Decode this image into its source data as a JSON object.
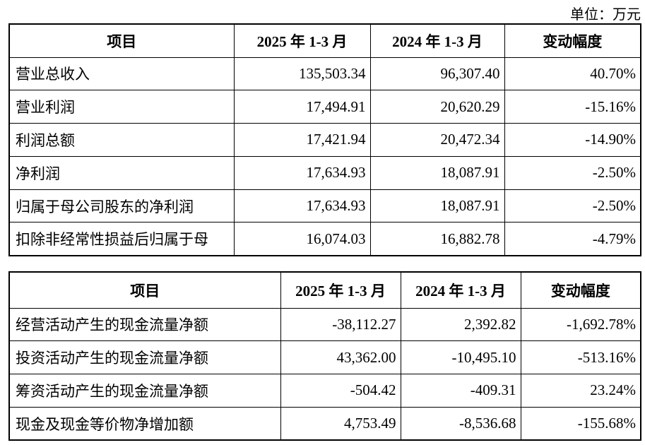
{
  "unit": "单位：万元",
  "tables": [
    {
      "header": [
        "项目",
        "2025 年 1-3 月",
        "2024 年 1-3 月",
        "变动幅度"
      ],
      "rows": [
        [
          "营业总收入",
          "135,503.34",
          "96,307.40",
          "40.70%"
        ],
        [
          "营业利润",
          "17,494.91",
          "20,620.29",
          "-15.16%"
        ],
        [
          "利润总额",
          "17,421.94",
          "20,472.34",
          "-14.90%"
        ],
        [
          "净利润",
          "17,634.93",
          "18,087.91",
          "-2.50%"
        ],
        [
          "归属于母公司股东的净利润",
          "17,634.93",
          "18,087.91",
          "-2.50%"
        ],
        [
          "扣除非经常性损益后归属于母",
          "16,074.03",
          "16,882.78",
          "-4.79%"
        ]
      ]
    },
    {
      "header": [
        "项目",
        "2025 年 1-3 月",
        "2024 年 1-3 月",
        "变动幅度"
      ],
      "rows": [
        [
          "经营活动产生的现金流量净额",
          "-38,112.27",
          "2,392.82",
          "-1,692.78%"
        ],
        [
          "投资活动产生的现金流量净额",
          "43,362.00",
          "-10,495.10",
          "-513.16%"
        ],
        [
          "筹资活动产生的现金流量净额",
          "-504.42",
          "-409.31",
          "23.24%"
        ],
        [
          "现金及现金等价物净增加额",
          "4,753.49",
          "-8,536.68",
          "-155.68%"
        ]
      ]
    }
  ]
}
